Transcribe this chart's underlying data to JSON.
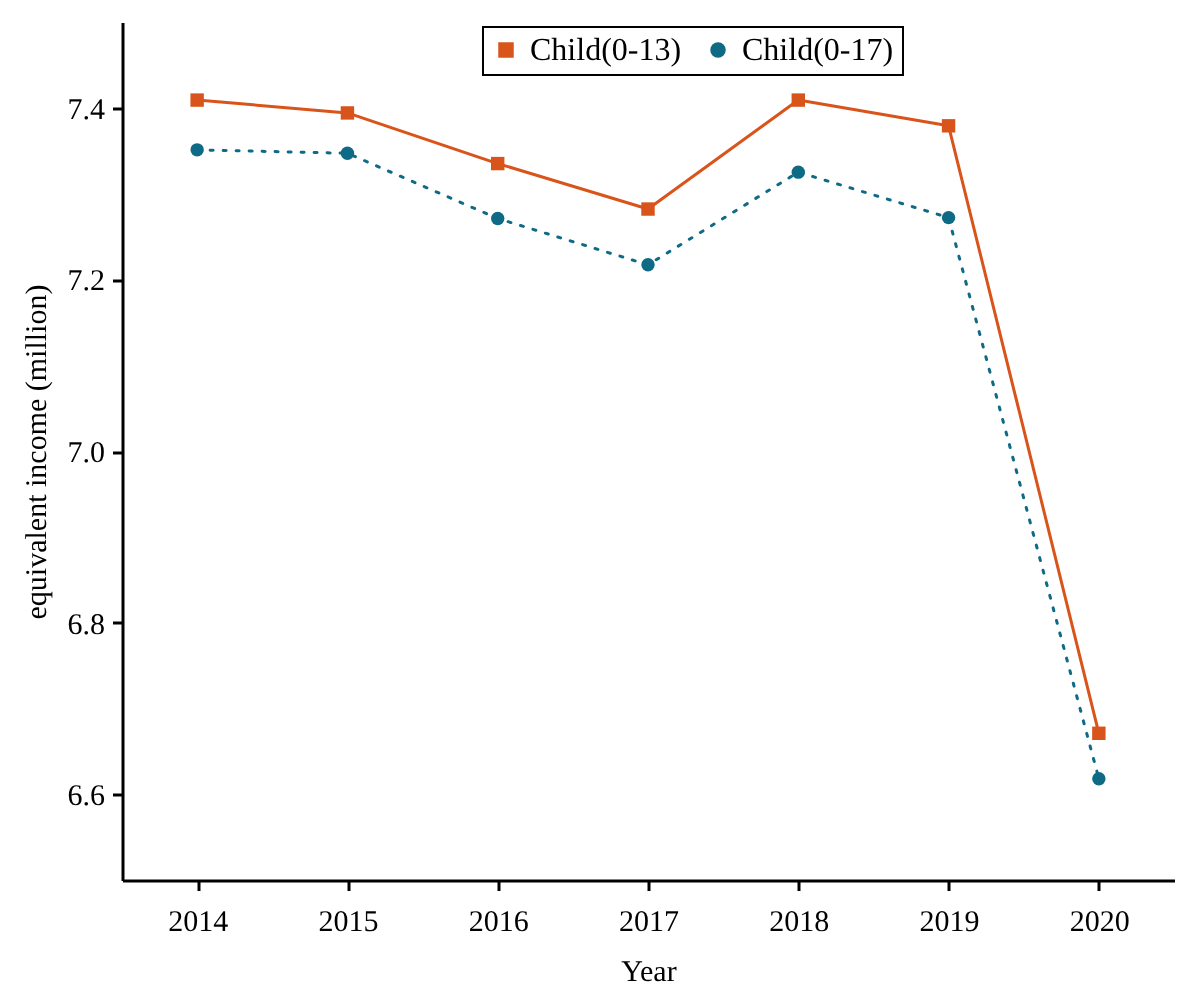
{
  "chart_data": {
    "type": "line",
    "xlabel": "Year",
    "ylabel": "equivalent income (million)",
    "x": [
      2014,
      2015,
      2016,
      2017,
      2018,
      2019,
      2020
    ],
    "series": [
      {
        "name": "Child(0-13)",
        "color": "#d9541a",
        "marker": "square",
        "line_style": "solid",
        "values": [
          7.409,
          7.394,
          7.335,
          7.282,
          7.409,
          7.379,
          6.671
        ]
      },
      {
        "name": "Child(0-17)",
        "color": "#0f6b85",
        "marker": "circle",
        "line_style": "dotted",
        "values": [
          7.351,
          7.347,
          7.271,
          7.217,
          7.325,
          7.272,
          6.618
        ]
      }
    ],
    "xlim": [
      2013.5,
      2020.5
    ],
    "xticks": [
      2014,
      2015,
      2016,
      2017,
      2018,
      2019,
      2020
    ],
    "ylim": [
      6.5,
      7.5
    ],
    "yticks": [
      6.6,
      6.8,
      {
        "value": 7,
        "label": "7.0"
      },
      7.2,
      7.4
    ],
    "grid": false,
    "legend": "top"
  }
}
